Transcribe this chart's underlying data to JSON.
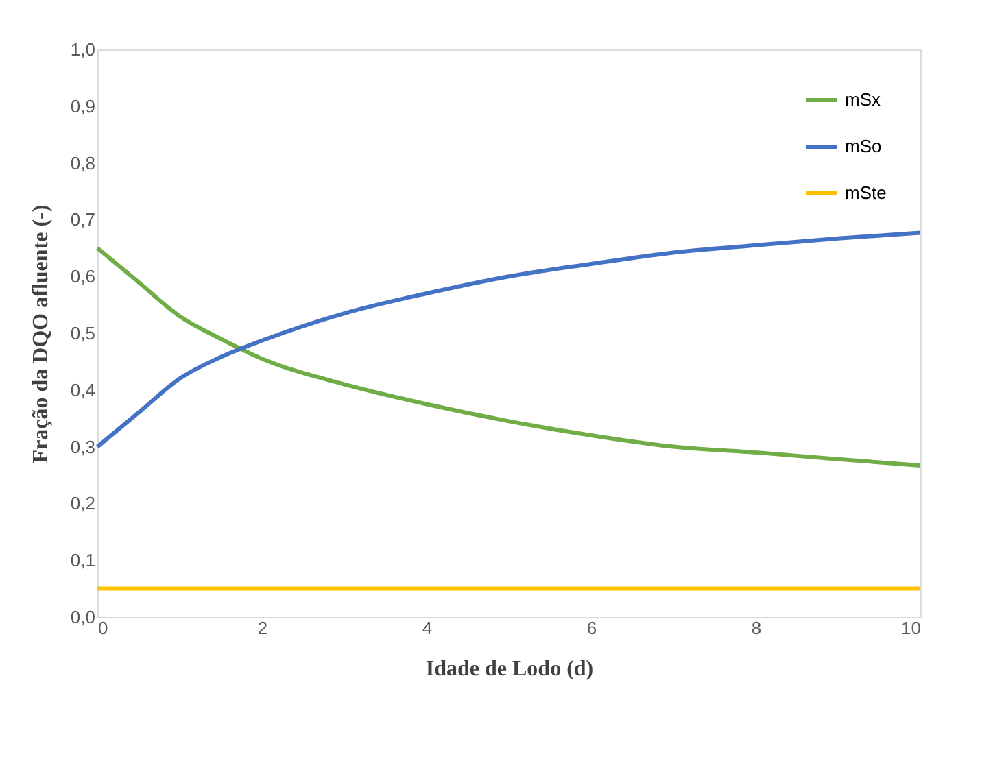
{
  "chart_data": {
    "type": "line",
    "xlabel": "Idade de Lodo (d)",
    "ylabel": "Fração da DQO afluente (-)",
    "x": [
      0,
      0.5,
      1,
      1.5,
      2,
      3,
      4,
      5,
      6,
      7,
      8,
      9,
      10
    ],
    "series": [
      {
        "name": "mSx",
        "color": "#70ad47",
        "values": [
          0.65,
          0.59,
          0.53,
          0.49,
          0.455,
          0.41,
          0.375,
          0.345,
          0.32,
          0.3,
          0.29,
          0.278,
          0.267
        ]
      },
      {
        "name": "mSo",
        "color": "#4472c4",
        "values": [
          0.3,
          0.36,
          0.42,
          0.458,
          0.487,
          0.535,
          0.57,
          0.6,
          0.622,
          0.642,
          0.655,
          0.667,
          0.677
        ]
      },
      {
        "name": "mSte",
        "color": "#ffc000",
        "values": [
          0.05,
          0.05,
          0.05,
          0.05,
          0.05,
          0.05,
          0.05,
          0.05,
          0.05,
          0.05,
          0.05,
          0.05,
          0.05
        ]
      }
    ],
    "xlim": [
      0,
      10
    ],
    "xticks": [
      0,
      2,
      4,
      6,
      8,
      10
    ],
    "ylim": [
      0,
      1
    ],
    "yticks": [
      {
        "value": 0,
        "label": "0,0"
      },
      {
        "value": 0.1,
        "label": "0,1"
      },
      {
        "value": 0.2,
        "label": "0,2"
      },
      {
        "value": 0.3,
        "label": "0,3"
      },
      {
        "value": 0.4,
        "label": "0,4"
      },
      {
        "value": 0.5,
        "label": "0,5"
      },
      {
        "value": 0.6,
        "label": "0,6"
      },
      {
        "value": 0.7,
        "label": "0,7"
      },
      {
        "value": 0.8,
        "label": "0,8"
      },
      {
        "value": 0.9,
        "label": "0,9"
      },
      {
        "value": 1,
        "label": "1,0"
      }
    ],
    "grid": false,
    "legend": "top right",
    "marker": "none",
    "line_style": "solid"
  }
}
